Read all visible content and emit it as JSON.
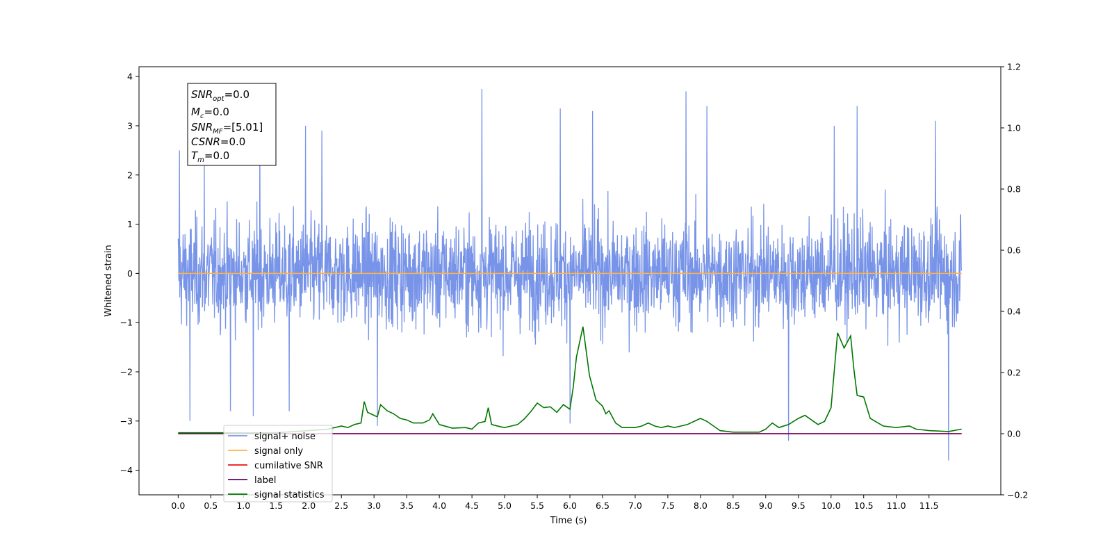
{
  "chart_data": {
    "type": "line",
    "title": "",
    "xlabel": "Time (s)",
    "ylabel": "Whitened strain",
    "y2label": "",
    "xlim": [
      -0.6,
      12.6
    ],
    "ylim": [
      -4.5,
      4.2
    ],
    "y2lim": [
      -0.2,
      1.2
    ],
    "x_ticks": [
      "0.0",
      "0.5",
      "1.0",
      "1.5",
      "2.0",
      "2.5",
      "3.0",
      "3.5",
      "4.0",
      "4.5",
      "5.0",
      "5.5",
      "6.0",
      "6.5",
      "7.0",
      "7.5",
      "8.0",
      "8.5",
      "9.0",
      "9.5",
      "10.0",
      "10.5",
      "11.0",
      "11.5"
    ],
    "y_ticks": [
      "4",
      "3",
      "2",
      "1",
      "0",
      "−1",
      "−2",
      "−3",
      "−4"
    ],
    "y2_ticks": [
      "1.2",
      "1.0",
      "0.8",
      "0.6",
      "0.4",
      "0.2",
      "0.0",
      "−0.2"
    ],
    "grid": false,
    "legend_position": "lower-left",
    "annotation": {
      "snr_opt": {
        "sym": "SNR",
        "sub": "opt",
        "val": "=0.0"
      },
      "mc": {
        "sym": "M",
        "sub": "c",
        "val": "=0.0"
      },
      "snr_mf": {
        "sym": "SNR",
        "sub": "MF",
        "val": "=[5.01]"
      },
      "csnr": {
        "sym": "CSNR",
        "val": "=0.0"
      },
      "tm": {
        "sym": "T",
        "sub": "m",
        "val": "=0.0"
      }
    },
    "series": [
      {
        "name": "signal+ noise",
        "color": "#7894e8",
        "axis": "left",
        "x_range": [
          0,
          12
        ],
        "y_band": [
          -2.0,
          2.0
        ],
        "spikes": [
          [
            0.02,
            2.5
          ],
          [
            0.4,
            2.3
          ],
          [
            1.25,
            3.0
          ],
          [
            1.95,
            3.0
          ],
          [
            2.2,
            2.9
          ],
          [
            4.65,
            3.75
          ],
          [
            5.85,
            3.35
          ],
          [
            6.35,
            3.3
          ],
          [
            7.78,
            3.7
          ],
          [
            8.1,
            3.4
          ],
          [
            10.05,
            3.0
          ],
          [
            10.4,
            3.4
          ],
          [
            11.6,
            3.1
          ],
          [
            0.18,
            -3.0
          ],
          [
            0.8,
            -2.8
          ],
          [
            1.15,
            -2.9
          ],
          [
            1.7,
            -2.8
          ],
          [
            3.05,
            -3.1
          ],
          [
            6.0,
            -3.05
          ],
          [
            9.35,
            -3.4
          ],
          [
            11.8,
            -3.8
          ]
        ]
      },
      {
        "name": "signal only",
        "color": "#ffb347",
        "axis": "left",
        "x": [
          0,
          12
        ],
        "y": [
          0,
          0
        ]
      },
      {
        "name": "cumilative SNR",
        "color": "#ee1111",
        "axis": "right",
        "x": [
          0,
          12
        ],
        "y": [
          0,
          0
        ]
      },
      {
        "name": "label",
        "color": "#660066",
        "axis": "right",
        "x": [
          0,
          12
        ],
        "y": [
          0,
          0
        ]
      },
      {
        "name": "signal statistics",
        "color": "#007700",
        "axis": "right",
        "x": [
          0,
          0.5,
          1,
          1.5,
          2,
          2.3,
          2.5,
          2.6,
          2.7,
          2.8,
          2.85,
          2.9,
          3,
          3.05,
          3.1,
          3.2,
          3.3,
          3.4,
          3.5,
          3.6,
          3.75,
          3.85,
          3.9,
          4,
          4.2,
          4.4,
          4.5,
          4.6,
          4.7,
          4.75,
          4.8,
          4.95,
          5,
          5.1,
          5.2,
          5.3,
          5.4,
          5.5,
          5.6,
          5.7,
          5.8,
          5.9,
          6,
          6.05,
          6.1,
          6.2,
          6.3,
          6.4,
          6.5,
          6.55,
          6.6,
          6.7,
          6.8,
          6.9,
          7,
          7.1,
          7.2,
          7.3,
          7.4,
          7.5,
          7.6,
          7.7,
          7.8,
          7.9,
          8,
          8.05,
          8.1,
          8.2,
          8.3,
          8.5,
          8.7,
          8.9,
          9,
          9.1,
          9.2,
          9.35,
          9.5,
          9.6,
          9.7,
          9.8,
          9.9,
          10,
          10.1,
          10.2,
          10.3,
          10.35,
          10.4,
          10.5,
          10.6,
          10.8,
          11,
          11.2,
          11.3,
          11.5,
          11.8,
          12
        ],
        "y": [
          0.003,
          0.003,
          0.003,
          0.003,
          0.01,
          0.015,
          0.025,
          0.02,
          0.03,
          0.035,
          0.105,
          0.07,
          0.06,
          0.055,
          0.095,
          0.075,
          0.065,
          0.05,
          0.045,
          0.035,
          0.035,
          0.045,
          0.065,
          0.03,
          0.018,
          0.02,
          0.015,
          0.035,
          0.04,
          0.085,
          0.03,
          0.022,
          0.02,
          0.025,
          0.03,
          0.048,
          0.072,
          0.1,
          0.085,
          0.088,
          0.07,
          0.095,
          0.08,
          0.15,
          0.25,
          0.35,
          0.19,
          0.11,
          0.09,
          0.065,
          0.075,
          0.035,
          0.02,
          0.02,
          0.02,
          0.025,
          0.035,
          0.025,
          0.02,
          0.025,
          0.02,
          0.025,
          0.03,
          0.04,
          0.05,
          0.045,
          0.04,
          0.025,
          0.01,
          0.005,
          0.005,
          0.005,
          0.015,
          0.035,
          0.02,
          0.03,
          0.05,
          0.06,
          0.045,
          0.03,
          0.04,
          0.085,
          0.33,
          0.28,
          0.32,
          0.21,
          0.125,
          0.12,
          0.05,
          0.025,
          0.02,
          0.025,
          0.015,
          0.01,
          0.007,
          0.015
        ]
      }
    ]
  }
}
